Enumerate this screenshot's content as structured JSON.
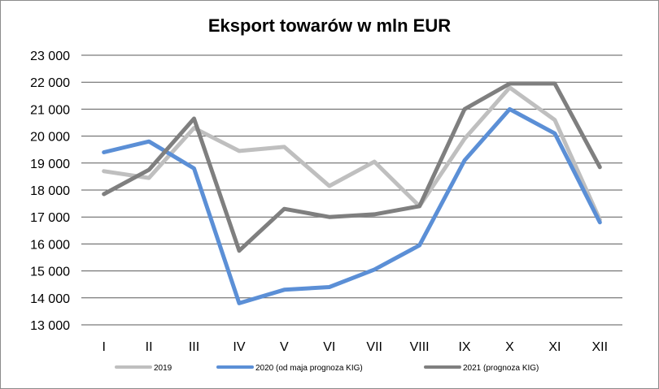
{
  "chart_data": {
    "type": "line",
    "title": "Eksport towarów w mln EUR",
    "xlabel": "",
    "ylabel": "",
    "categories": [
      "I",
      "II",
      "III",
      "IV",
      "V",
      "VI",
      "VII",
      "VIII",
      "IX",
      "X",
      "XI",
      "XII"
    ],
    "ylim": [
      13000,
      23000
    ],
    "yticks": [
      "13 000",
      "14 000",
      "15 000",
      "16 000",
      "17 000",
      "18 000",
      "19 000",
      "20 000",
      "21 000",
      "22 000",
      "23 000"
    ],
    "grid": true,
    "legend_position": "bottom",
    "series": [
      {
        "name": "2019",
        "color": "#bfbfbf",
        "values": [
          18700,
          18450,
          20300,
          19450,
          19600,
          18150,
          19050,
          17400,
          19900,
          21800,
          20600,
          16900
        ]
      },
      {
        "name": "2020 (od maja prognoza KIG)",
        "color": "#5b8fd6",
        "values": [
          19400,
          19800,
          18800,
          13800,
          14300,
          14400,
          15050,
          15950,
          19100,
          21000,
          20100,
          16800
        ]
      },
      {
        "name": "2021 (prognoza KIG)",
        "color": "#7f7f7f",
        "values": [
          17850,
          18750,
          20650,
          15750,
          17300,
          17000,
          17100,
          17400,
          21000,
          21950,
          21950,
          18850
        ]
      }
    ]
  }
}
